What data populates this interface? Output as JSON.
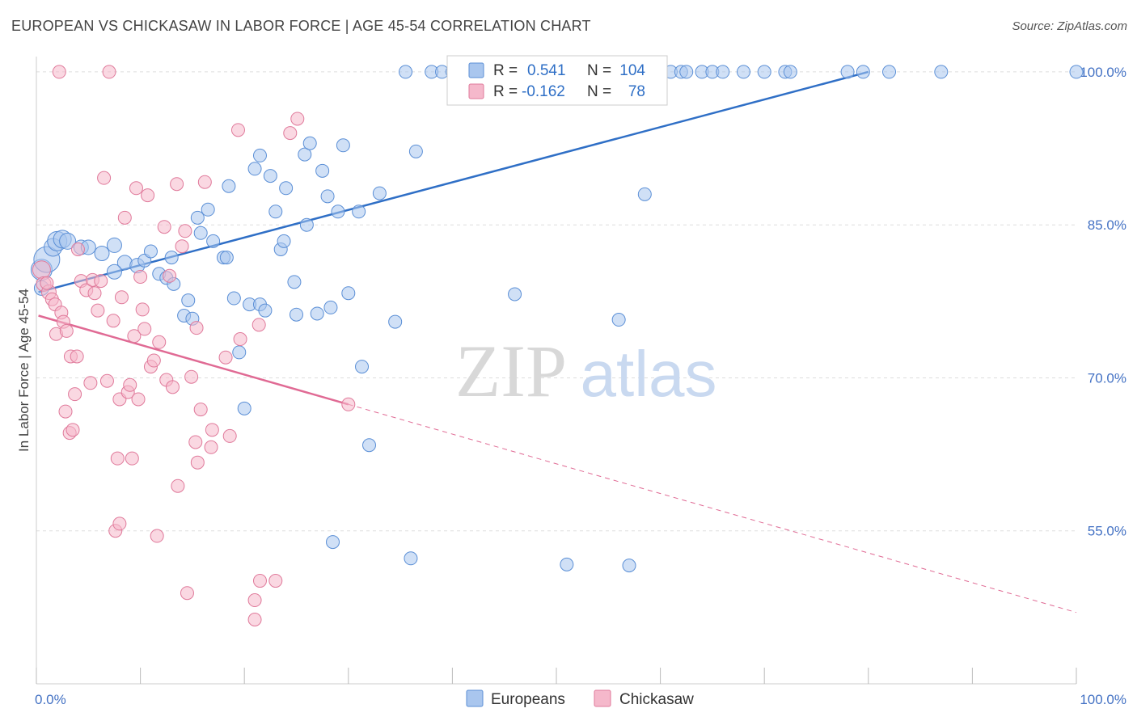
{
  "title": "EUROPEAN VS CHICKASAW IN LABOR FORCE | AGE 45-54 CORRELATION CHART",
  "source": "Source: ZipAtlas.com",
  "watermark": {
    "zip": "ZIP",
    "atlas": "atlas"
  },
  "colors": {
    "blue_fill": "#a9c6ee",
    "blue_stroke": "#5b8fd6",
    "blue_line": "#2f6fc6",
    "pink_fill": "#f5b8cb",
    "pink_stroke": "#e07a9b",
    "pink_line": "#e06a94",
    "grid": "#dddddd",
    "tick_text": "#4472c4"
  },
  "legend": {
    "row1": {
      "r_label": "R =",
      "r_value": "0.541",
      "n_label": "N =",
      "n_value": "104"
    },
    "row2": {
      "r_label": "R =",
      "r_value": "-0.162",
      "n_label": "N =",
      "n_value": "78"
    }
  },
  "bottom_legend": {
    "series1": "Europeans",
    "series2": "Chickasaw"
  },
  "chart_data": {
    "type": "scatter",
    "title": "EUROPEAN VS CHICKASAW IN LABOR FORCE | AGE 45-54 CORRELATION CHART",
    "xlabel": "",
    "ylabel": "In Labor Force | Age 45-54",
    "xlim": [
      0,
      100
    ],
    "ylim": [
      40,
      101.5
    ],
    "x_tick_labels": [
      "0.0%",
      "100.0%"
    ],
    "y_ticks": [
      55,
      70,
      85,
      100
    ],
    "y_tick_labels": [
      "55.0%",
      "70.0%",
      "85.0%",
      "100.0%"
    ],
    "grid": true,
    "legend_position": "top-center",
    "series": [
      {
        "name": "Europeans",
        "r": 0.541,
        "n": 104,
        "trend": {
          "x0": 0.2,
          "y0": 78.4,
          "x1": 80,
          "y1": 100
        },
        "points": [
          [
            0.5,
            78.8,
            9
          ],
          [
            0.5,
            80.6,
            13
          ],
          [
            1,
            81.6,
            16
          ],
          [
            1.6,
            82.8,
            11
          ],
          [
            2,
            83.4,
            12
          ],
          [
            2.5,
            83.6,
            11
          ],
          [
            3,
            83.4,
            10
          ],
          [
            4.3,
            82.8,
            9
          ],
          [
            5,
            82.8,
            9
          ],
          [
            6.3,
            82.2,
            9
          ],
          [
            7.5,
            83,
            9
          ],
          [
            8.5,
            81.3,
            9
          ],
          [
            9.7,
            81,
            9
          ],
          [
            7.5,
            80.4,
            9
          ],
          [
            10.4,
            81.5,
            8
          ],
          [
            11,
            82.4,
            8
          ],
          [
            11.8,
            80.2,
            8
          ],
          [
            12.5,
            79.8,
            8
          ],
          [
            13,
            81.8,
            8
          ],
          [
            13.2,
            79.2,
            8
          ],
          [
            14.6,
            77.6,
            8
          ],
          [
            14.2,
            76.1,
            8
          ],
          [
            15,
            75.8,
            8
          ],
          [
            15.5,
            85.7,
            8
          ],
          [
            15.8,
            84.2,
            8
          ],
          [
            16.5,
            86.5,
            8
          ],
          [
            17,
            83.4,
            8
          ],
          [
            18,
            81.8,
            8
          ],
          [
            18.3,
            81.8,
            8
          ],
          [
            18.5,
            88.8,
            8
          ],
          [
            19,
            77.8,
            8
          ],
          [
            19.5,
            72.5,
            8
          ],
          [
            20,
            67,
            8
          ],
          [
            20.5,
            77.2,
            8
          ],
          [
            21.5,
            77.2,
            8
          ],
          [
            21,
            90.5,
            8
          ],
          [
            21.5,
            91.8,
            8
          ],
          [
            22,
            76.6,
            8
          ],
          [
            22.5,
            89.8,
            8
          ],
          [
            23,
            86.3,
            8
          ],
          [
            23.5,
            82.6,
            8
          ],
          [
            23.8,
            83.4,
            8
          ],
          [
            24,
            88.6,
            8
          ],
          [
            24.8,
            79.4,
            8
          ],
          [
            25,
            76.2,
            8
          ],
          [
            25.8,
            91.9,
            8
          ],
          [
            26,
            85,
            8
          ],
          [
            26.3,
            93,
            8
          ],
          [
            27,
            76.3,
            8
          ],
          [
            27.5,
            90.3,
            8
          ],
          [
            28,
            87.8,
            8
          ],
          [
            28.3,
            76.9,
            8
          ],
          [
            29,
            86.3,
            8
          ],
          [
            29.5,
            92.8,
            8
          ],
          [
            30,
            78.3,
            8
          ],
          [
            31,
            86.3,
            8
          ],
          [
            31.3,
            71.1,
            8
          ],
          [
            32,
            63.4,
            8
          ],
          [
            33,
            88.1,
            8
          ],
          [
            34.5,
            75.5,
            8
          ],
          [
            36.5,
            92.2,
            8
          ],
          [
            35.5,
            100,
            8
          ],
          [
            38,
            100,
            8
          ],
          [
            39,
            100,
            8
          ],
          [
            40,
            100,
            8
          ],
          [
            42,
            100,
            8
          ],
          [
            42.5,
            100,
            8
          ],
          [
            44,
            100,
            8
          ],
          [
            45,
            100,
            8
          ],
          [
            46,
            100,
            8
          ],
          [
            46.5,
            100,
            8
          ],
          [
            48,
            100,
            8
          ],
          [
            50,
            100,
            8
          ],
          [
            51.5,
            100,
            8
          ],
          [
            52,
            100,
            8
          ],
          [
            53,
            100,
            8
          ],
          [
            53.5,
            100,
            8
          ],
          [
            54,
            100,
            8
          ],
          [
            55,
            100,
            8
          ],
          [
            57.5,
            100,
            8
          ],
          [
            59,
            100,
            8
          ],
          [
            61,
            100,
            8
          ],
          [
            62,
            100,
            8
          ],
          [
            62.5,
            100,
            8
          ],
          [
            64,
            100,
            8
          ],
          [
            65,
            100,
            8
          ],
          [
            66,
            100,
            8
          ],
          [
            68,
            100,
            8
          ],
          [
            70,
            100,
            8
          ],
          [
            72,
            100,
            8
          ],
          [
            72.5,
            100,
            8
          ],
          [
            78,
            100,
            8
          ],
          [
            79.5,
            100,
            8
          ],
          [
            82,
            100,
            8
          ],
          [
            87,
            100,
            8
          ],
          [
            36,
            52.3,
            8
          ],
          [
            28.5,
            53.9,
            8
          ],
          [
            46,
            78.2,
            8
          ],
          [
            51,
            51.7,
            8
          ],
          [
            57,
            51.6,
            8
          ],
          [
            58.5,
            88,
            8
          ],
          [
            56,
            75.7,
            8
          ],
          [
            100,
            100,
            8
          ]
        ]
      },
      {
        "name": "Chickasaw",
        "r": -0.162,
        "n": 78,
        "trend": {
          "x0": 0.2,
          "y0": 76.1,
          "x1": 30,
          "y1": 67.4,
          "dash_x1": 100,
          "dash_y1": 47
        },
        "points": [
          [
            0.5,
            80.6,
            11
          ],
          [
            0.7,
            79.2,
            9
          ],
          [
            1.2,
            78.4,
            9
          ],
          [
            1.5,
            77.7,
            8
          ],
          [
            1.8,
            77.2,
            8
          ],
          [
            1.9,
            74.3,
            8
          ],
          [
            2.4,
            76.4,
            8
          ],
          [
            2.6,
            75.5,
            8
          ],
          [
            2.9,
            74.6,
            8
          ],
          [
            2.8,
            66.7,
            8
          ],
          [
            3.2,
            64.6,
            8
          ],
          [
            3.3,
            72.1,
            8
          ],
          [
            3.5,
            64.9,
            8
          ],
          [
            3.7,
            68.4,
            8
          ],
          [
            3.9,
            72.1,
            8
          ],
          [
            4,
            82.6,
            8
          ],
          [
            4.3,
            79.5,
            8
          ],
          [
            4.8,
            78.6,
            8
          ],
          [
            5.2,
            69.5,
            8
          ],
          [
            5.4,
            79.6,
            8
          ],
          [
            5.6,
            78.3,
            8
          ],
          [
            5.9,
            76.6,
            8
          ],
          [
            6.2,
            79.5,
            8
          ],
          [
            6.5,
            89.6,
            8
          ],
          [
            6.8,
            69.7,
            8
          ],
          [
            7,
            100,
            8
          ],
          [
            7.4,
            75.6,
            8
          ],
          [
            7.6,
            55,
            8
          ],
          [
            7.8,
            62.1,
            8
          ],
          [
            8,
            55.7,
            8
          ],
          [
            8,
            67.9,
            8
          ],
          [
            8.2,
            77.9,
            8
          ],
          [
            8.5,
            85.7,
            8
          ],
          [
            8.8,
            68.6,
            8
          ],
          [
            9,
            69.3,
            8
          ],
          [
            9.2,
            62.1,
            8
          ],
          [
            9.4,
            74.1,
            8
          ],
          [
            9.6,
            88.6,
            8
          ],
          [
            9.8,
            67.9,
            8
          ],
          [
            10,
            79.9,
            8
          ],
          [
            10.2,
            76.7,
            8
          ],
          [
            10.4,
            74.8,
            8
          ],
          [
            10.7,
            87.9,
            8
          ],
          [
            11,
            71.1,
            8
          ],
          [
            11.3,
            71.7,
            8
          ],
          [
            11.6,
            54.5,
            8
          ],
          [
            11.8,
            73.5,
            8
          ],
          [
            12.3,
            84.8,
            8
          ],
          [
            12.5,
            69.8,
            8
          ],
          [
            12.8,
            80,
            8
          ],
          [
            13.1,
            69.1,
            8
          ],
          [
            13.5,
            89,
            8
          ],
          [
            13.6,
            59.4,
            8
          ],
          [
            14,
            82.9,
            8
          ],
          [
            14.3,
            84.4,
            8
          ],
          [
            14.5,
            48.9,
            8
          ],
          [
            14.9,
            70.1,
            8
          ],
          [
            15.4,
            74.9,
            8
          ],
          [
            15.8,
            66.9,
            8
          ],
          [
            15.3,
            63.7,
            8
          ],
          [
            15.5,
            61.7,
            8
          ],
          [
            16.2,
            89.2,
            8
          ],
          [
            16.8,
            63.2,
            8
          ],
          [
            16.9,
            64.9,
            8
          ],
          [
            18.2,
            72,
            8
          ],
          [
            18.6,
            64.3,
            8
          ],
          [
            19.4,
            94.3,
            8
          ],
          [
            19.6,
            73.8,
            8
          ],
          [
            21,
            48.2,
            8
          ],
          [
            21.5,
            50.1,
            8
          ],
          [
            21,
            46.3,
            8
          ],
          [
            21.4,
            75.2,
            8
          ],
          [
            23,
            50.1,
            8
          ],
          [
            24.4,
            94,
            8
          ],
          [
            25.1,
            95.4,
            8
          ],
          [
            2.2,
            100,
            8
          ],
          [
            1,
            79.3,
            8
          ],
          [
            30,
            67.4,
            8
          ]
        ]
      }
    ]
  }
}
